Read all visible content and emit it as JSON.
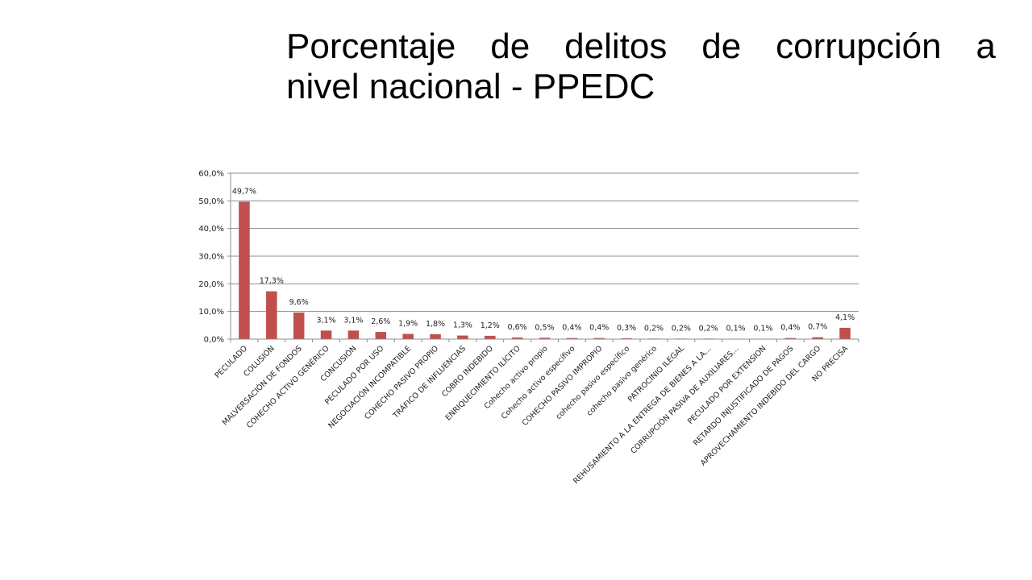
{
  "slide": {
    "title_line1": "Porcentaje de delitos de corrupción a",
    "title_line2": "nivel nacional - PPEDC"
  },
  "chart_data": {
    "type": "bar",
    "title": "",
    "xlabel": "",
    "ylabel": "",
    "ylim": [
      0,
      60
    ],
    "yticks": [
      "0,0%",
      "10,0%",
      "20,0%",
      "30,0%",
      "40,0%",
      "50,0%",
      "60,0%"
    ],
    "grid": true,
    "legend": "none",
    "bar_color": "#c0504d",
    "categories": [
      "PECULADO",
      "COLUSIÓN",
      "MALVERSACIÓN DE FONDOS",
      "COHECHO ACTIVO GENÉRICO",
      "CONCUSIÓN",
      "PECULADO POR USO",
      "NEGOCIACIÓN INCOMPATIBLE",
      "COHECHO PASIVO PROPIO",
      "TRÁFICO DE INFLUENCIAS",
      "COBRO INDEBIDO",
      "ENRIQUECIMIENTO ILÍCITO",
      "Cohecho activo propio",
      "Cohecho activo específivo",
      "COHECHO PASIVO IMPROPIO",
      "cohecho  pasivo específico",
      "cohecho  pasivo genérico",
      "PATROCINIO ILEGAL",
      "REHUSAMIENTO A LA ENTREGA DE BIENES A LA…",
      "CORRUPCIÓN PASIVA DE AUXILIARES…",
      "PECULADO POR EXTENSION",
      "RETARDO INJUSTIFICADO DE PAGOS",
      "APROVECHAMIENTO INDEBIDO DEL CARGO",
      "NO PRECISA"
    ],
    "values": [
      49.7,
      17.3,
      9.6,
      3.1,
      3.1,
      2.6,
      1.9,
      1.8,
      1.3,
      1.2,
      0.6,
      0.5,
      0.4,
      0.4,
      0.3,
      0.2,
      0.2,
      0.2,
      0.1,
      0.1,
      0.4,
      0.7,
      4.1
    ],
    "data_labels": [
      "49,7%",
      "17,3%",
      "9,6%",
      "3,1%",
      "3,1%",
      "2,6%",
      "1,9%",
      "1,8%",
      "1,3%",
      "1,2%",
      "0,6%",
      "0,5%",
      "0,4%",
      "0,4%",
      "0,3%",
      "0,2%",
      "0,2%",
      "0,2%",
      "0,1%",
      "0,1%",
      "0,4%",
      "0,7%",
      "4,1%"
    ]
  }
}
